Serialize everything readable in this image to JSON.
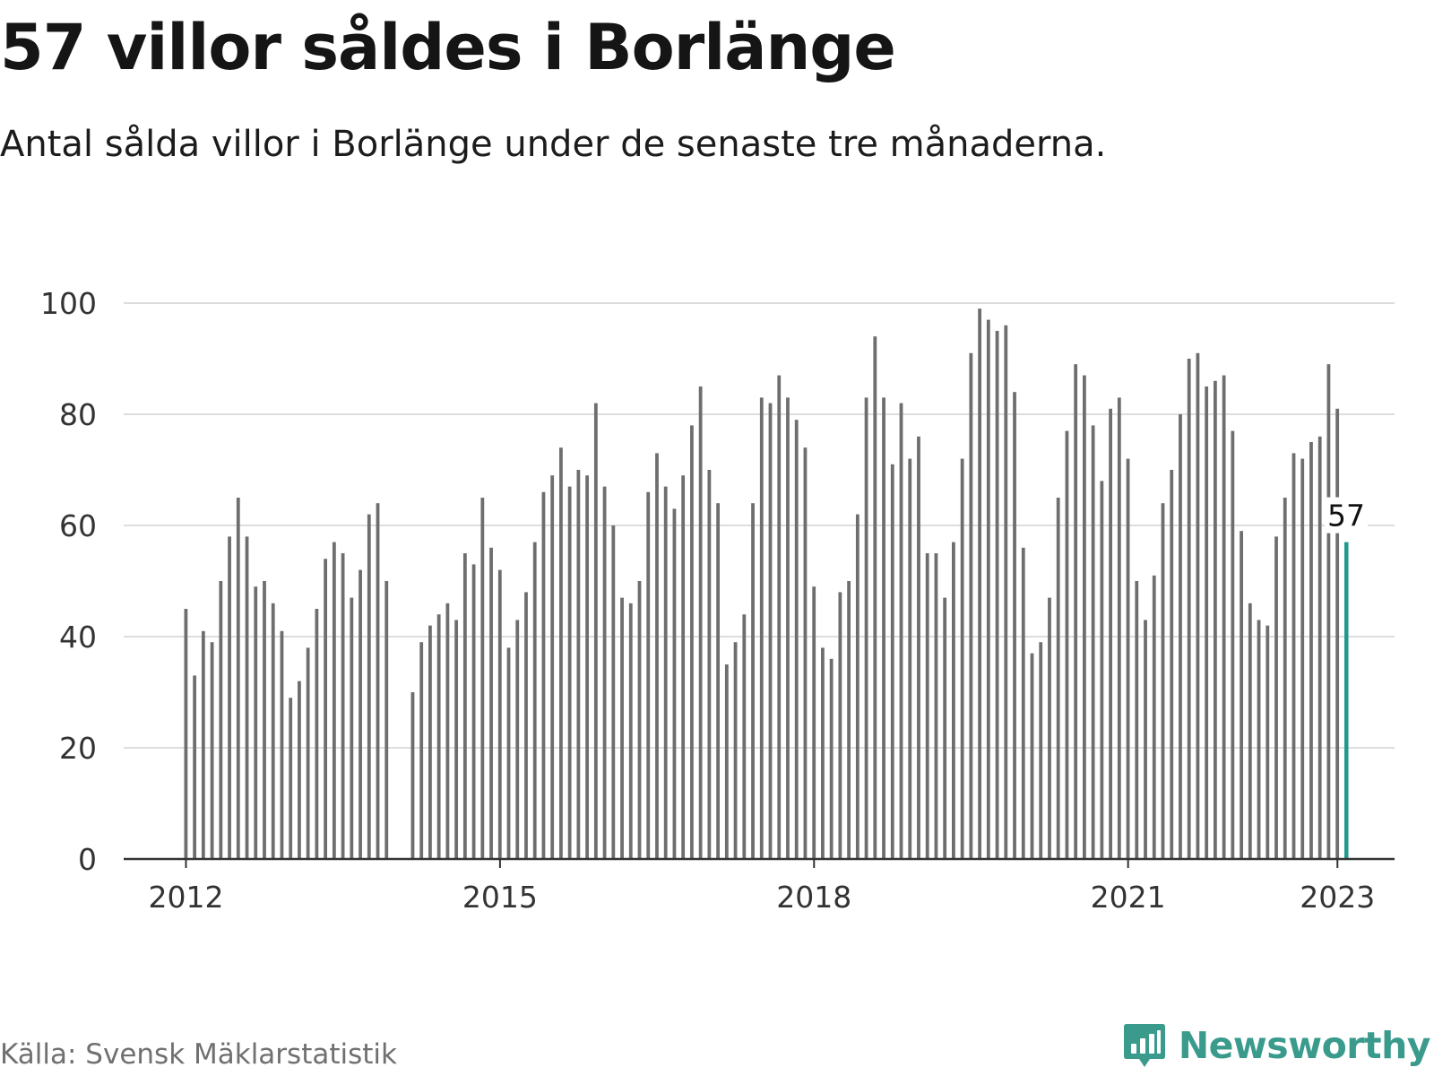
{
  "header": {
    "title": "57 villor såldes i Borlänge",
    "subtitle": "Antal sålda villor i Borlänge under de senaste tre månaderna."
  },
  "footer": {
    "source": "Källa: Svensk Mäklarstatistik",
    "brand": "Newsworthy",
    "brand_icon": "bar-chart-speech-bubble-icon"
  },
  "colors": {
    "bar": "#6e6e6e",
    "highlight": "#1f9a8f",
    "grid": "#dddddd",
    "axis": "#333333",
    "tick_text": "#333333",
    "brand": "#3a9b8d"
  },
  "chart_data": {
    "type": "bar",
    "title": "57 villor såldes i Borlänge",
    "subtitle": "Antal sålda villor i Borlänge under de senaste tre månaderna.",
    "xlabel": "",
    "ylabel": "",
    "ylim": [
      0,
      100
    ],
    "yticks": [
      0,
      20,
      40,
      60,
      80,
      100
    ],
    "xticks": [
      "2012",
      "2015",
      "2018",
      "2021",
      "2023"
    ],
    "grid": true,
    "legend": "none",
    "start_month": "2012-01",
    "series": [
      {
        "values": [
          45,
          33,
          41,
          39,
          50,
          58,
          65,
          58,
          49,
          50,
          46,
          41,
          29,
          32,
          38,
          45,
          54,
          57,
          55,
          47,
          52,
          62,
          64,
          50,
          null,
          null,
          30,
          39,
          42,
          44,
          46,
          43,
          55,
          53,
          65,
          56,
          52,
          38,
          43,
          48,
          57,
          66,
          69,
          74,
          67,
          70,
          69,
          82,
          67,
          60,
          47,
          46,
          50,
          66,
          73,
          67,
          63,
          69,
          78,
          85,
          70,
          64,
          35,
          39,
          44,
          64,
          83,
          82,
          87,
          83,
          79,
          74,
          49,
          38,
          36,
          48,
          50,
          62,
          83,
          94,
          83,
          71,
          82,
          72,
          76,
          55,
          55,
          47,
          57,
          72,
          91,
          99,
          97,
          95,
          96,
          84,
          56,
          37,
          39,
          47,
          65,
          77,
          89,
          87,
          78,
          68,
          81,
          83,
          72,
          50,
          43,
          51,
          64,
          70,
          80,
          90,
          91,
          85,
          86,
          87,
          77,
          59,
          46,
          43,
          42,
          58,
          65,
          73,
          72,
          75,
          76,
          89,
          81,
          57
        ]
      }
    ],
    "annotations": [
      {
        "label": "57",
        "target": "last"
      }
    ]
  }
}
